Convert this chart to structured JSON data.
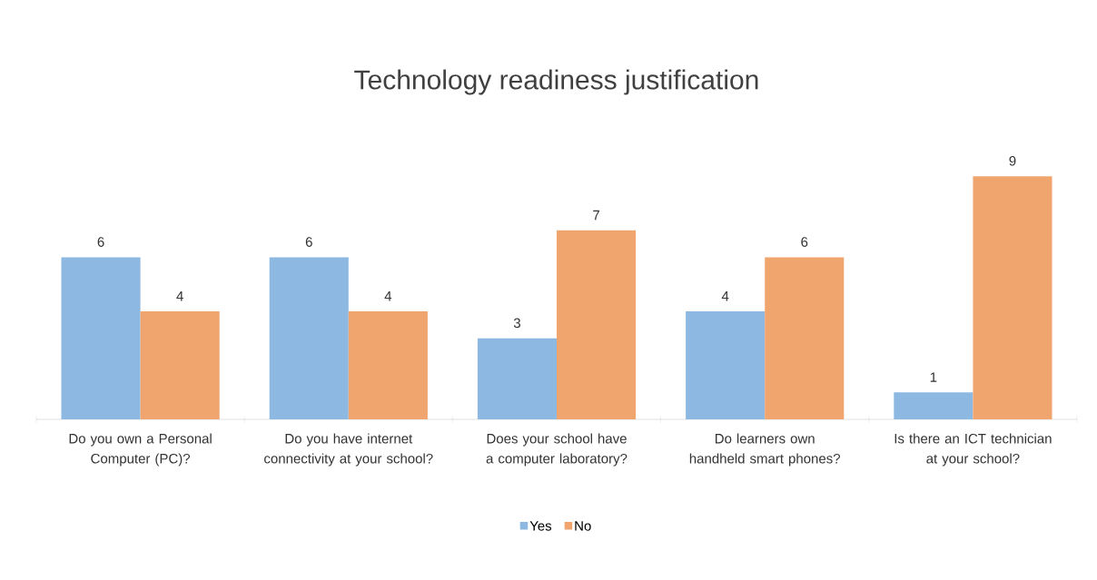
{
  "chart_data": {
    "type": "bar",
    "title": "Technology readiness justification",
    "categories": [
      "Do you own a Personal Computer (PC)?",
      "Do you have internet connectivity at your school?",
      "Does your school have a computer laboratory?",
      "Do learners own handheld smart phones?",
      "Is there an ICT technician at your school?"
    ],
    "series": [
      {
        "name": "Yes",
        "color": "#8db8e1",
        "values": [
          6,
          6,
          3,
          4,
          1
        ]
      },
      {
        "name": "No",
        "color": "#f0a56f",
        "values": [
          4,
          4,
          7,
          6,
          9
        ]
      }
    ],
    "data_labels": true,
    "legend": "bottom"
  }
}
